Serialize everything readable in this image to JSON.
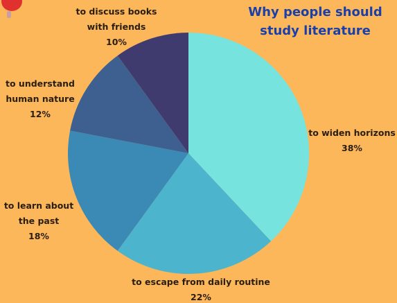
{
  "chart_data": {
    "type": "pie",
    "title": "Why people should study literature",
    "title_lines": [
      "Why people should",
      "study literature"
    ],
    "slices": [
      {
        "label_lines": [
          "to widen horizons"
        ],
        "value": 38,
        "value_label": "38%",
        "color": "#77e3df"
      },
      {
        "label_lines": [
          "to escape from daily routine"
        ],
        "value": 22,
        "value_label": "22%",
        "color": "#4cb4cc"
      },
      {
        "label_lines": [
          "to learn about",
          "the past"
        ],
        "value": 18,
        "value_label": "18%",
        "color": "#3a8ab5"
      },
      {
        "label_lines": [
          "to understand",
          "human nature"
        ],
        "value": 12,
        "value_label": "12%",
        "color": "#3e6090"
      },
      {
        "label_lines": [
          "to discuss books",
          "with friends"
        ],
        "value": 10,
        "value_label": "10%",
        "color": "#3f3b6e"
      }
    ]
  },
  "colors": {
    "background": "#fbb75a",
    "title": "#1a3fa8",
    "pin": "#e0312e"
  }
}
